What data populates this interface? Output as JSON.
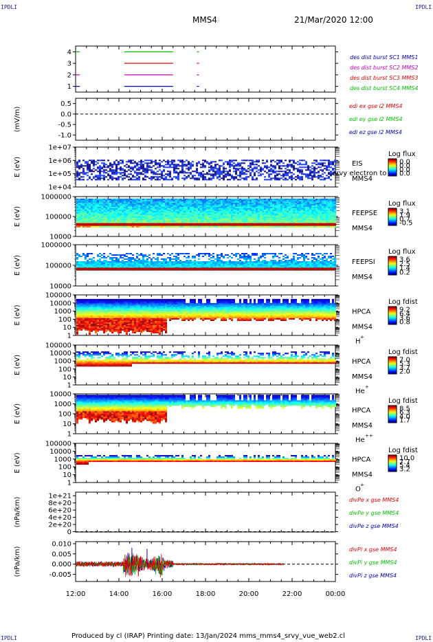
{
  "header": {
    "spacecraft": "MMS4",
    "date": "21/Mar/2020 12:00",
    "corner": "IPDLI"
  },
  "footer": {
    "text": "Produced by cl (IRAP)   Printing date: 13/Jan/2024   mms_mms4_srvy_vue_web2.cl"
  },
  "colors": {
    "red": "#e00000",
    "green": "#00c000",
    "blue": "#0000c0",
    "magenta": "#c000c0"
  },
  "chart_data": [
    {
      "type": "line",
      "name": "burst",
      "ylabel": "",
      "yticks": [
        "1",
        "2",
        "3",
        "4"
      ],
      "ylim": [
        0.5,
        4.5
      ],
      "legend": [
        {
          "label": "des dist burst SC1 MMS1",
          "color": "#0000c0"
        },
        {
          "label": "des dist burst SC2 MMS2",
          "color": "#c000c0"
        },
        {
          "label": "des dist burst SC3 MMS3",
          "color": "#e00000"
        },
        {
          "label": "des dist burst SC4 MMS4",
          "color": "#00c000"
        }
      ],
      "segments": [
        {
          "level": 4,
          "start": 12.0,
          "end": 12.2,
          "color": "#00c000"
        },
        {
          "level": 4,
          "start": 14.25,
          "end": 16.5,
          "color": "#00c000"
        },
        {
          "level": 4,
          "start": 17.6,
          "end": 17.7,
          "color": "#00c000"
        },
        {
          "level": 3,
          "start": 14.25,
          "end": 16.5,
          "color": "#e00000"
        },
        {
          "level": 3,
          "start": 17.6,
          "end": 17.7,
          "color": "#e00000"
        },
        {
          "level": 2,
          "start": 12.0,
          "end": 12.2,
          "color": "#c000c0"
        },
        {
          "level": 2,
          "start": 14.25,
          "end": 16.5,
          "color": "#c000c0"
        },
        {
          "level": 2,
          "start": 17.6,
          "end": 17.7,
          "color": "#c000c0"
        },
        {
          "level": 1,
          "start": 12.0,
          "end": 12.2,
          "color": "#0000c0"
        },
        {
          "level": 1,
          "start": 14.25,
          "end": 16.5,
          "color": "#0000c0"
        },
        {
          "level": 1,
          "start": 17.6,
          "end": 17.7,
          "color": "#0000c0"
        }
      ]
    },
    {
      "type": "line",
      "name": "edi",
      "ylabel": "(mV/m)",
      "yticks": [
        "0.5",
        "0.0",
        "-0.5",
        "-1.0"
      ],
      "ylim": [
        -1.25,
        0.75
      ],
      "zero_line": true,
      "legend": [
        {
          "label": "edi ex gse l2 MMS4",
          "color": "#e00000"
        },
        {
          "label": "edi ey gse l2 MMS4",
          "color": "#00c000"
        },
        {
          "label": "edi ez gse l2 MMS4",
          "color": "#0000c0"
        }
      ]
    },
    {
      "type": "heatmap",
      "name": "eis",
      "ylabel": "E (eV)",
      "yticks": [
        "1e+07",
        "1e+06",
        "1e+05",
        "1e+04"
      ],
      "ylim": [
        4,
        7
      ],
      "log_y": true,
      "cb_title": "Log flux",
      "cb_ticks": [
        "0.0",
        "0.0",
        "0.0",
        "0.0"
      ],
      "instrument": "EIS",
      "species": "MMS4",
      "note": "srvy electron to",
      "fill": {
        "type": "eis",
        "floor": 4.5,
        "ceil": 6.05
      }
    },
    {
      "type": "heatmap",
      "name": "feepse",
      "ylabel": "E (eV)",
      "yticks": [
        "1000000",
        "100000",
        "10000"
      ],
      "ylim": [
        4,
        6
      ],
      "log_y": true,
      "cb_title": "Log flux",
      "cb_ticks": [
        "3.1",
        "1.9",
        "0.7",
        "-0.5"
      ],
      "instrument": "FEEPSE",
      "species": "MMS4",
      "fill": {
        "type": "feeps",
        "floor": 4.48,
        "ceil": 5.9,
        "band": 4.6
      }
    },
    {
      "type": "heatmap",
      "name": "feepsi",
      "ylabel": "E (eV)",
      "yticks": [
        "1000000",
        "100000",
        "10000"
      ],
      "ylim": [
        4,
        6
      ],
      "log_y": true,
      "cb_title": "Log flux",
      "cb_ticks": [
        "3.6",
        "2.5",
        "1.4",
        "0.2"
      ],
      "instrument": "FEEPSI",
      "species": "MMS4",
      "fill": {
        "type": "feepsi",
        "floor": 4.75,
        "ceil": 5.6,
        "band": 4.82
      }
    },
    {
      "type": "heatmap",
      "name": "hpca-h",
      "ylabel": "E (eV)",
      "yticks": [
        "100000",
        "10000",
        "1000",
        "100",
        "10",
        "1"
      ],
      "ylim": [
        0,
        5
      ],
      "log_y": true,
      "cb_title": "Log fdist",
      "cb_ticks": [
        "9.2",
        "6.4",
        "3.6",
        "0.8"
      ],
      "instrument": "HPCA",
      "species": "MMS4",
      "ion": "H",
      "charge": "+",
      "fill": {
        "type": "hpca",
        "floor": 0.2,
        "ceil": 4.5,
        "peak": 2.2
      }
    },
    {
      "type": "heatmap",
      "name": "hpca-he",
      "ylabel": "E (eV)",
      "yticks": [
        "100000",
        "10000",
        "1000",
        "100",
        "10",
        "1"
      ],
      "ylim": [
        0,
        5
      ],
      "log_y": true,
      "cb_title": "Log fdist",
      "cb_ticks": [
        "7.0",
        "5.3",
        "3.7",
        "2.0"
      ],
      "instrument": "HPCA",
      "species": "MMS4",
      "ion": "He",
      "charge": "+",
      "fill": {
        "type": "hpcahe",
        "floor": 2.4,
        "ceil": 4.2,
        "peak": 2.9
      }
    },
    {
      "type": "heatmap",
      "name": "hpca-he2",
      "ylabel": "E (eV)",
      "yticks": [
        "10000",
        "1000",
        "100",
        "10",
        "1"
      ],
      "ylim": [
        0,
        4.2
      ],
      "log_y": true,
      "cb_title": "Log fdist",
      "cb_ticks": [
        "8.5",
        "6.3",
        "4.0",
        "1.7"
      ],
      "instrument": "HPCA",
      "species": "MMS4",
      "ion": "He",
      "charge": "++",
      "fill": {
        "type": "hpca",
        "floor": 1.1,
        "ceil": 4.1,
        "peak": 2.4
      }
    },
    {
      "type": "heatmap",
      "name": "hpca-o",
      "ylabel": "E (eV)",
      "yticks": [
        "100000",
        "10000",
        "1000",
        "100",
        "10",
        "1"
      ],
      "ylim": [
        0,
        5
      ],
      "log_y": true,
      "cb_title": "Log fdist",
      "cb_ticks": [
        "10.0",
        "7.7",
        "5.4",
        "3.2"
      ],
      "instrument": "HPCA",
      "species": "MMS4",
      "ion": "O",
      "charge": "+",
      "fill": {
        "type": "hpcao",
        "floor": 2.4,
        "ceil": 3.5,
        "peak": 2.9
      }
    },
    {
      "type": "line",
      "name": "divpe",
      "ylabel": "(nPa/km)",
      "yticks": [
        "1e+21",
        "8e+20",
        "6e+20",
        "4e+20",
        "2e+20",
        "0"
      ],
      "ytick_values": [
        1e+21,
        8e+20,
        6e+20,
        4e+20,
        2e+20,
        0
      ],
      "ylim": [
        -1e+19,
        1.1e+21
      ],
      "zero_line": true,
      "legend": [
        {
          "label": "divPe x gse MMS4",
          "color": "#e00000"
        },
        {
          "label": "divPe y gse MMS4",
          "color": "#00c000"
        },
        {
          "label": "divPe z gse MMS4",
          "color": "#0000c0"
        }
      ]
    },
    {
      "type": "line",
      "name": "divpi",
      "ylabel": "(nPa/km)",
      "yticks": [
        "0.010",
        "0.005",
        "0.000",
        "-0.005"
      ],
      "ytick_values": [
        0.01,
        0.005,
        0.0,
        -0.005
      ],
      "ylim": [
        -0.0085,
        0.011
      ],
      "zero_line": true,
      "data_end": 21.6,
      "legend": [
        {
          "label": "divPi x gse MMS4",
          "color": "#e00000"
        },
        {
          "label": "divPi y gse MMS4",
          "color": "#00c000"
        },
        {
          "label": "divPi z gse MMS4",
          "color": "#0000c0"
        }
      ]
    }
  ],
  "xaxis": {
    "xlim": [
      12,
      24
    ],
    "ticks": [
      12,
      14,
      16,
      18,
      20,
      22,
      24
    ],
    "labels": [
      "12:00",
      "14:00",
      "16:00",
      "18:00",
      "20:00",
      "22:00",
      "00:00"
    ]
  }
}
